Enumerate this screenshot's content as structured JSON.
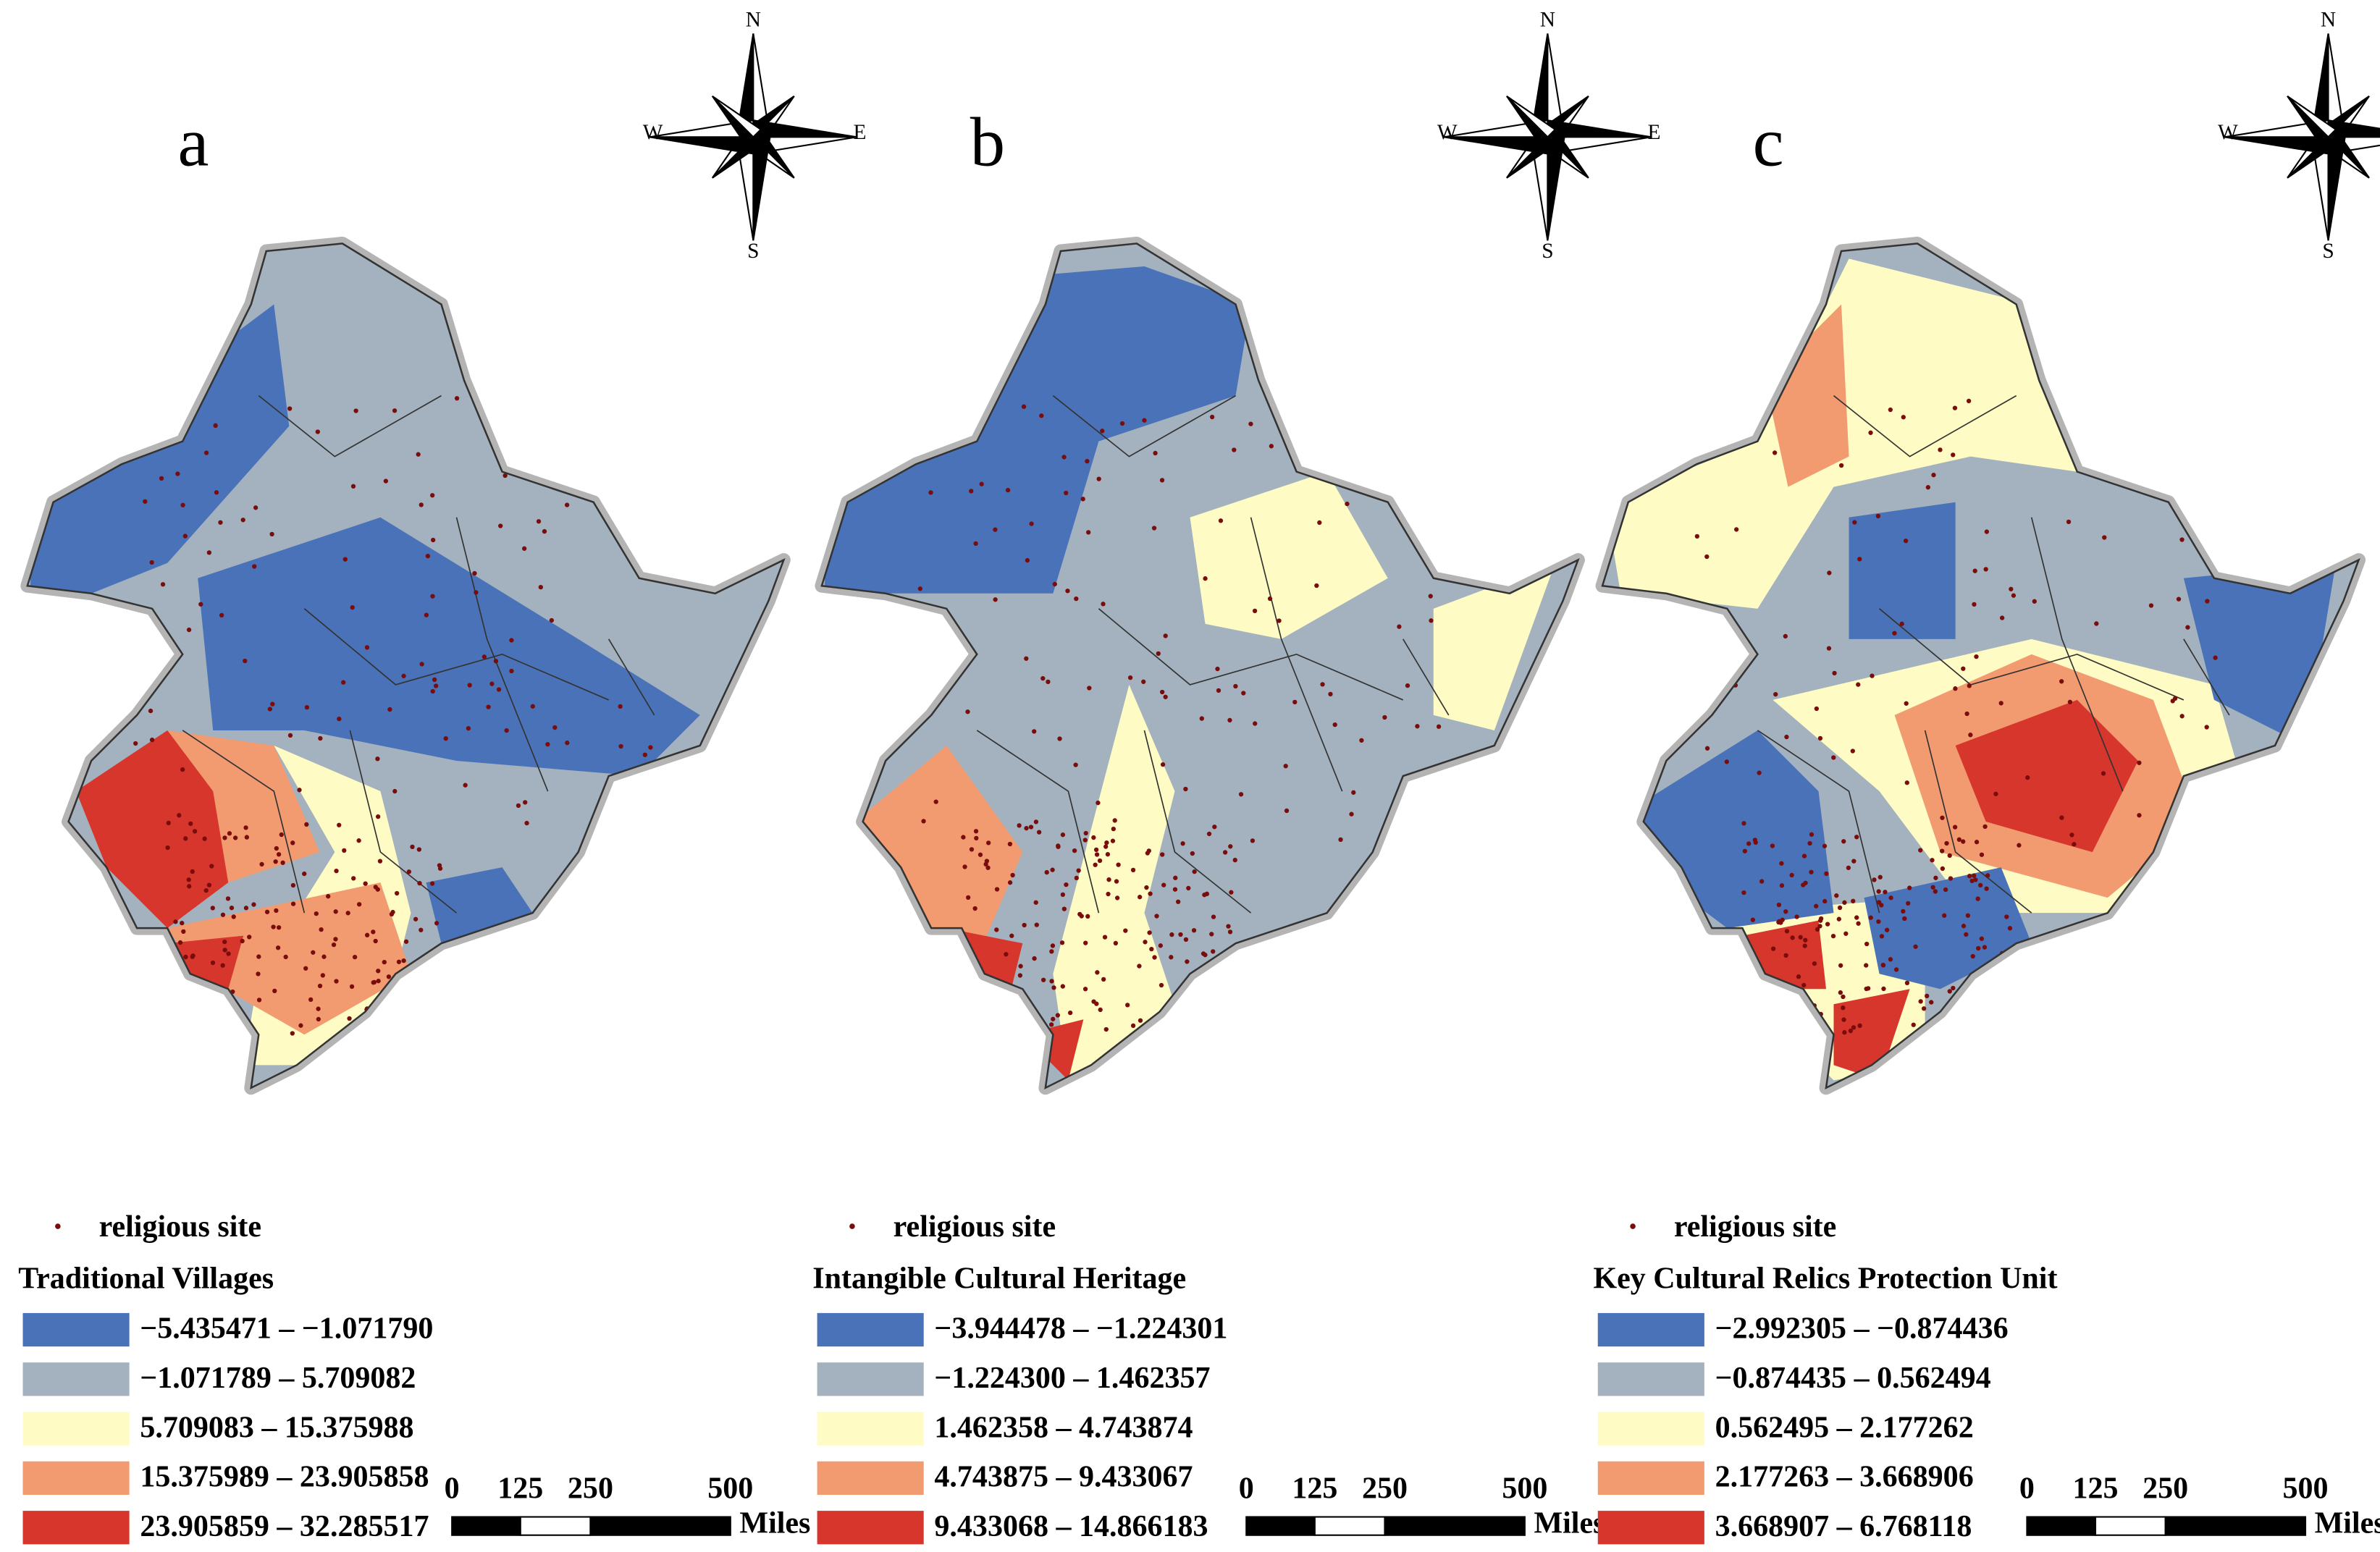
{
  "panels": [
    {
      "letter": "a",
      "point_label": "religious site",
      "legend_title": "Traditional Villages",
      "classes": [
        "−5.435471 – −1.071790",
        "−1.071789 – 5.709082",
        "5.709083 – 15.375988",
        "15.375989 – 23.905858",
        "23.905859 – 32.285517"
      ]
    },
    {
      "letter": "b",
      "point_label": "religious site",
      "legend_title": "Intangible Cultural Heritage",
      "classes": [
        "−3.944478 – −1.224301",
        "−1.224300 – 1.462357",
        "1.462358 – 4.743874",
        "4.743875 – 9.433067",
        "9.433068 – 14.866183"
      ]
    },
    {
      "letter": "c",
      "point_label": "religious site",
      "legend_title": "Key Cultural Relics Protection Unit",
      "classes": [
        "−2.992305 – −0.874436",
        "−0.874435 – 0.562494",
        "0.562495 – 2.177262",
        "2.177263 – 3.668906",
        "3.668907 – 6.768118"
      ]
    }
  ],
  "class_colors": [
    "#4a72b8",
    "#a3b2be",
    "#fefcc4",
    "#f29b71",
    "#d6362b"
  ],
  "compass": {
    "n": "N",
    "s": "S",
    "e": "E",
    "w": "W"
  },
  "scale_bar": {
    "ticks": [
      "0",
      "125",
      "250",
      "500"
    ],
    "unit": "Miles"
  }
}
